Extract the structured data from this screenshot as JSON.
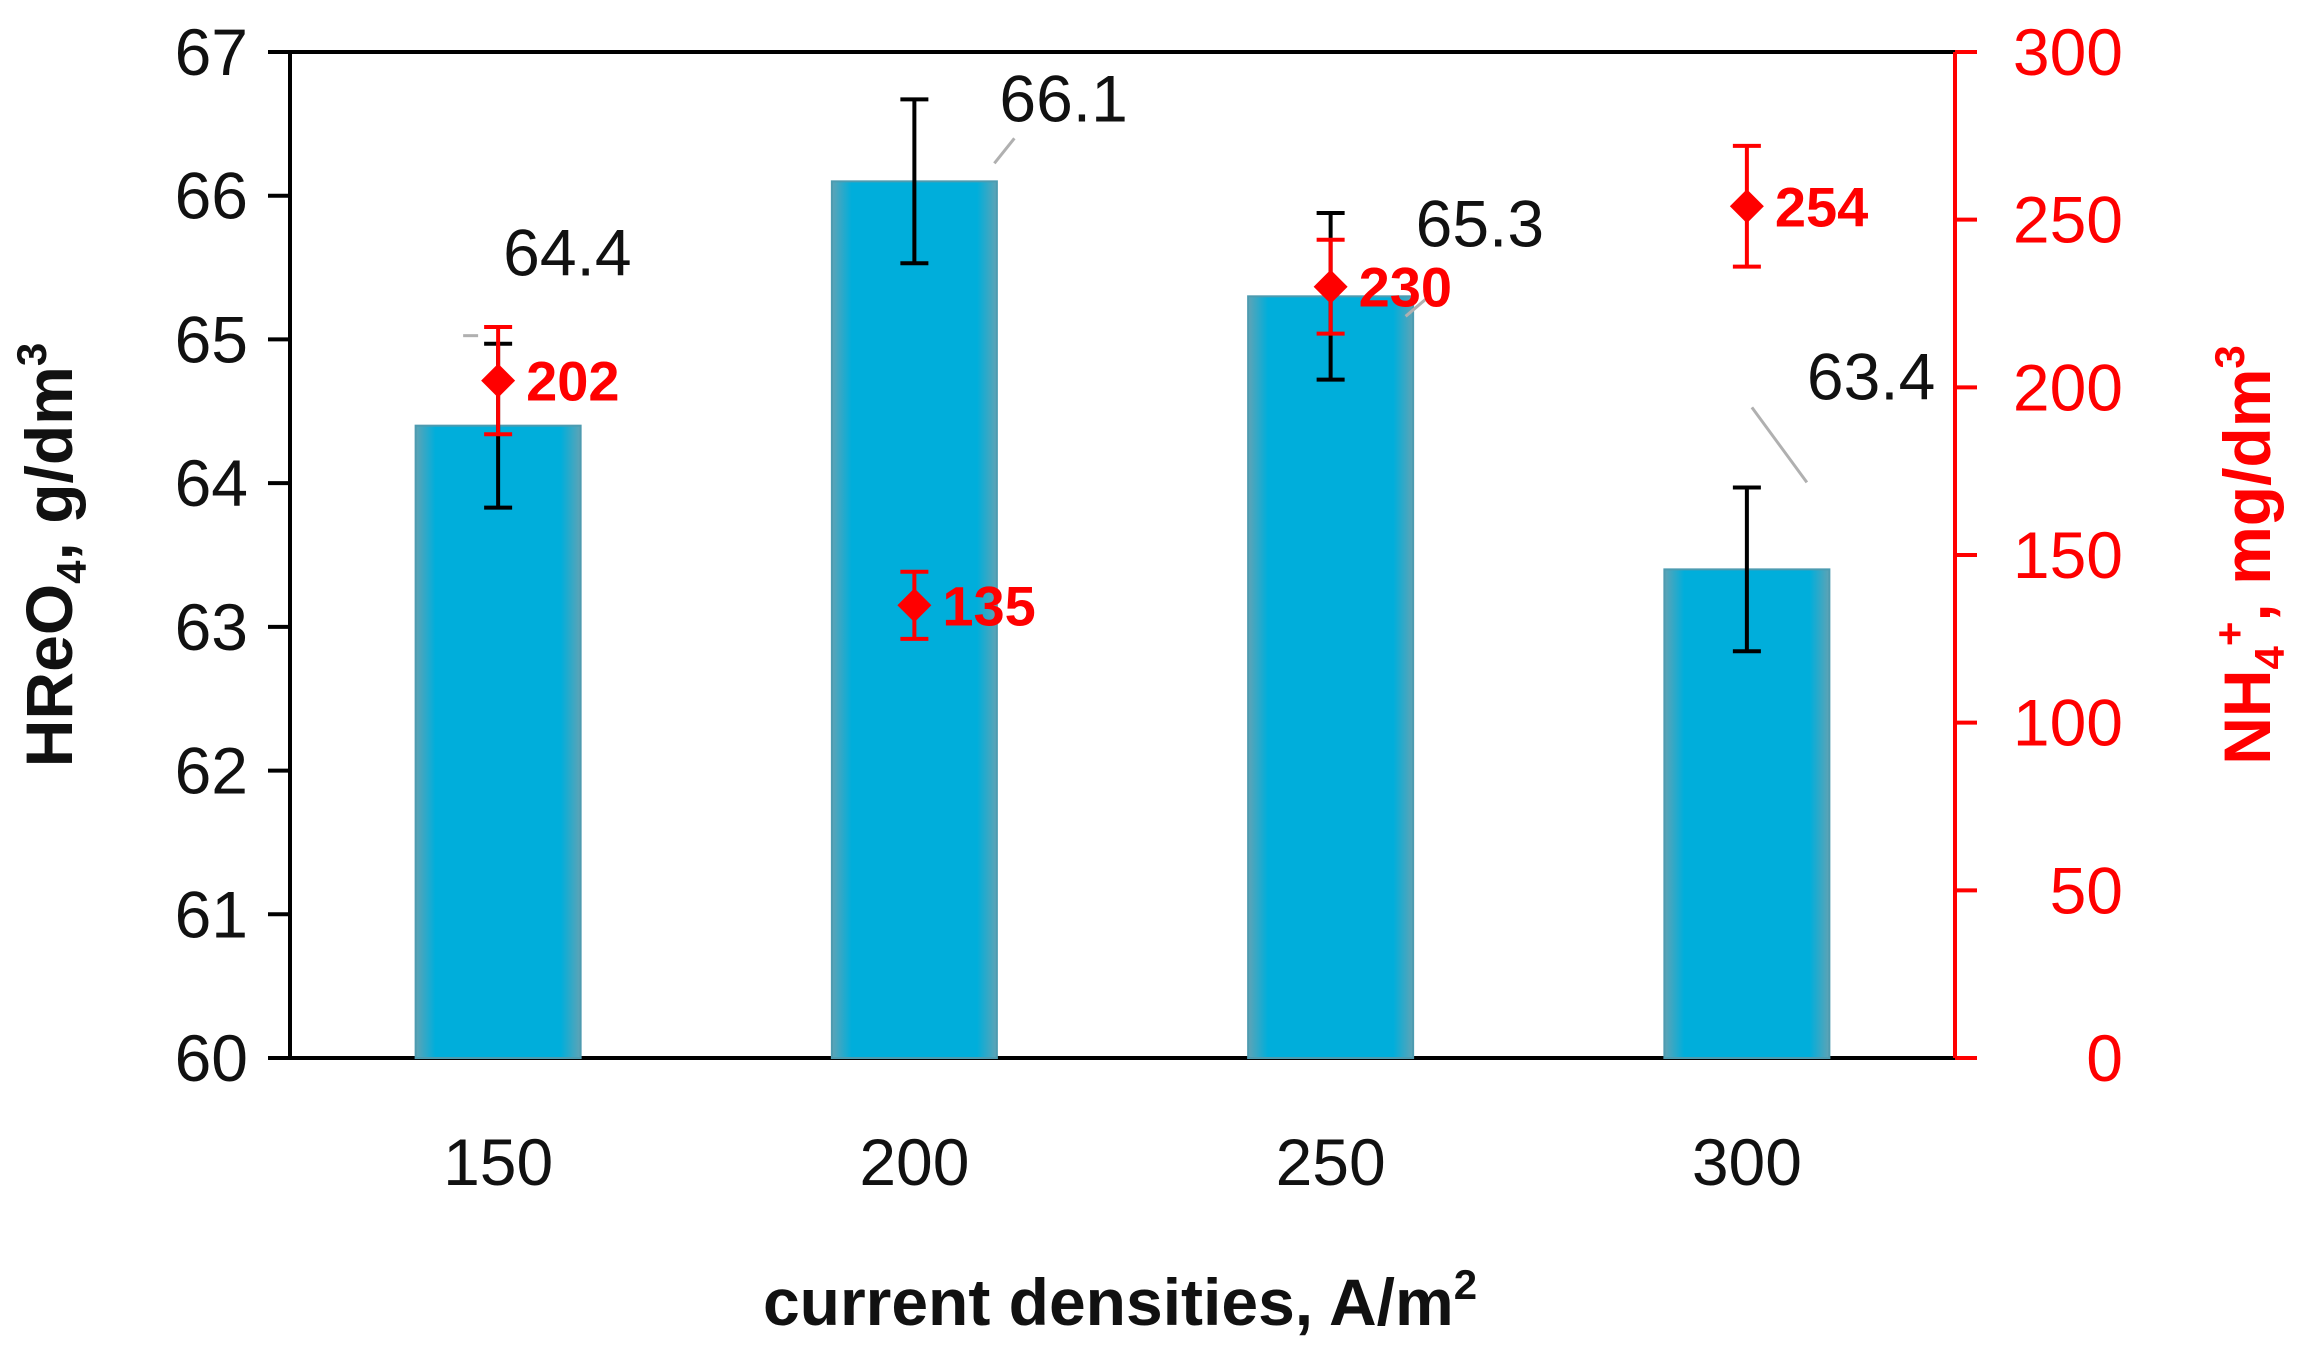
{
  "chart_data": {
    "type": "bar",
    "categories": [
      "150",
      "200",
      "250",
      "300"
    ],
    "series": [
      {
        "type": "bar",
        "axis": "left",
        "values": [
          64.4,
          66.1,
          65.3,
          63.4
        ],
        "error": [
          0.57,
          0.57,
          0.58,
          0.57
        ],
        "labels": [
          "64.4",
          "66.1",
          "65.3",
          "63.4"
        ]
      },
      {
        "type": "scatter",
        "axis": "right",
        "values": [
          202,
          135,
          230,
          254
        ],
        "error": [
          16,
          10,
          14,
          18
        ],
        "labels": [
          "202",
          "135",
          "230",
          "254"
        ]
      }
    ],
    "xlabel": "current densities, A/m",
    "xlabel_sup": "2",
    "ylabel_left": {
      "main": "HReO",
      "sub": "4",
      "rest": ", g/dm",
      "sup": "3"
    },
    "ylabel_right": {
      "main": "NH",
      "sub": "4",
      "sup1": "+",
      "rest": ", mg/dm",
      "sup2": "3"
    },
    "ylim_left": [
      60,
      67
    ],
    "yticks_left": [
      "60",
      "61",
      "62",
      "63",
      "64",
      "65",
      "66",
      "67"
    ],
    "ylim_right": [
      0,
      300
    ],
    "yticks_right": [
      "0",
      "50",
      "100",
      "150",
      "200",
      "250",
      "300"
    ],
    "grid": false,
    "colors": {
      "bar": "#00aedb",
      "bar_edge": "#4d9bb0",
      "points": "#ff0000",
      "axis_right": "#ff0000",
      "text": "#111111"
    }
  }
}
